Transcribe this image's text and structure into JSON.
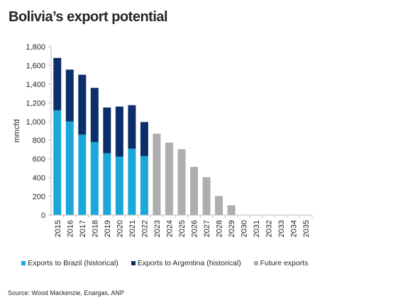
{
  "title": "Bolivia’s export potential",
  "source": "Source: Wood Mackenzie, Enargas, ANP",
  "colors": {
    "brazil": "#1aa7d9",
    "argentina": "#0c2f6b",
    "future": "#aeaeb0",
    "axis": "#bfbfbf",
    "text": "#262626"
  },
  "chart_data": {
    "type": "bar",
    "stacked": true,
    "ylabel": "mmcfd",
    "xlabel": "",
    "ylim": [
      0,
      1800
    ],
    "yticks": [
      "0",
      "200",
      "400",
      "600",
      "800",
      "1,000",
      "1,200",
      "1,400",
      "1,600",
      "1,800"
    ],
    "grid": false,
    "legend_position": "bottom",
    "categories": [
      "2015",
      "2016",
      "2017",
      "2018",
      "2019",
      "2020",
      "2021",
      "2022",
      "2023",
      "2024",
      "2025",
      "2026",
      "2027",
      "2028",
      "2029",
      "2030",
      "2031",
      "2032",
      "2033",
      "2034",
      "2035"
    ],
    "series": [
      {
        "name": "Exports to Brazil (historical)",
        "values": [
          1120,
          1000,
          860,
          780,
          660,
          625,
          710,
          630,
          0,
          0,
          0,
          0,
          0,
          0,
          0,
          0,
          0,
          0,
          0,
          0,
          0
        ]
      },
      {
        "name": "Exports to Argentina (historical)",
        "values": [
          560,
          555,
          640,
          580,
          490,
          535,
          465,
          365,
          0,
          0,
          0,
          0,
          0,
          0,
          0,
          0,
          0,
          0,
          0,
          0,
          0
        ]
      },
      {
        "name": "Future exports",
        "values": [
          0,
          0,
          0,
          0,
          0,
          0,
          0,
          0,
          870,
          775,
          705,
          515,
          405,
          205,
          105,
          0,
          0,
          0,
          0,
          0,
          0
        ]
      }
    ]
  }
}
